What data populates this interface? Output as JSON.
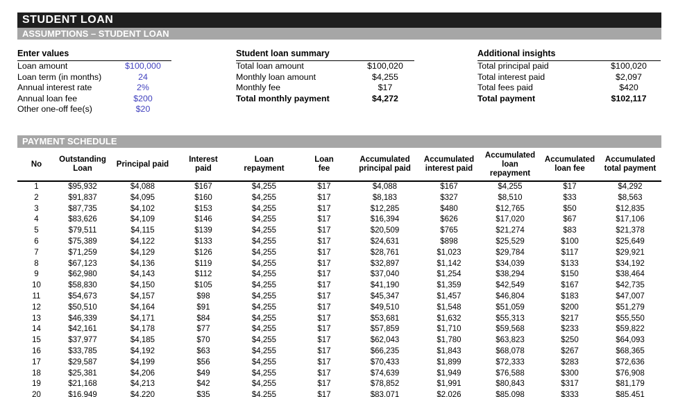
{
  "header": {
    "title": "STUDENT LOAN",
    "subtitle": "ASSUMPTIONS – STUDENT LOAN"
  },
  "sections": {
    "enter_values": {
      "title": "Enter values",
      "rows": [
        {
          "label": "Loan amount",
          "value": "$100,000"
        },
        {
          "label": "Loan term (in months)",
          "value": "24"
        },
        {
          "label": "Annual interest rate",
          "value": "2%"
        },
        {
          "label": "Annual loan fee",
          "value": "$200"
        },
        {
          "label": "Other one-off fee(s)",
          "value": "$20"
        }
      ]
    },
    "summary": {
      "title": "Student loan summary",
      "rows": [
        {
          "label": "Total loan amount",
          "value": "$100,020"
        },
        {
          "label": "Monthly loan amount",
          "value": "$4,255"
        },
        {
          "label": "Monthly fee",
          "value": "$17"
        },
        {
          "label": "Total monthly payment",
          "value": "$4,272",
          "bold": true
        }
      ]
    },
    "insights": {
      "title": "Additional insights",
      "rows": [
        {
          "label": "Total principal paid",
          "value": "$100,020"
        },
        {
          "label": "Total interest paid",
          "value": "$2,097"
        },
        {
          "label": "Total fees paid",
          "value": "$420"
        },
        {
          "label": "Total payment",
          "value": "$102,117",
          "bold": true
        }
      ]
    }
  },
  "schedule": {
    "title": "PAYMENT SCHEDULE",
    "columns": [
      "No",
      "Outstanding\nLoan",
      "Principal paid",
      "Interest\npaid",
      "Loan\nrepayment",
      "Loan\nfee",
      "Accumulated\nprincipal paid",
      "Accumulated\ninterest paid",
      "Accumulated\nloan\nrepayment",
      "Accumulated\nloan fee",
      "Accumulated\ntotal payment"
    ],
    "rows": [
      [
        "1",
        "$95,932",
        "$4,088",
        "$167",
        "$4,255",
        "$17",
        "$4,088",
        "$167",
        "$4,255",
        "$17",
        "$4,292"
      ],
      [
        "2",
        "$91,837",
        "$4,095",
        "$160",
        "$4,255",
        "$17",
        "$8,183",
        "$327",
        "$8,510",
        "$33",
        "$8,563"
      ],
      [
        "3",
        "$87,735",
        "$4,102",
        "$153",
        "$4,255",
        "$17",
        "$12,285",
        "$480",
        "$12,765",
        "$50",
        "$12,835"
      ],
      [
        "4",
        "$83,626",
        "$4,109",
        "$146",
        "$4,255",
        "$17",
        "$16,394",
        "$626",
        "$17,020",
        "$67",
        "$17,106"
      ],
      [
        "5",
        "$79,511",
        "$4,115",
        "$139",
        "$4,255",
        "$17",
        "$20,509",
        "$765",
        "$21,274",
        "$83",
        "$21,378"
      ],
      [
        "6",
        "$75,389",
        "$4,122",
        "$133",
        "$4,255",
        "$17",
        "$24,631",
        "$898",
        "$25,529",
        "$100",
        "$25,649"
      ],
      [
        "7",
        "$71,259",
        "$4,129",
        "$126",
        "$4,255",
        "$17",
        "$28,761",
        "$1,023",
        "$29,784",
        "$117",
        "$29,921"
      ],
      [
        "8",
        "$67,123",
        "$4,136",
        "$119",
        "$4,255",
        "$17",
        "$32,897",
        "$1,142",
        "$34,039",
        "$133",
        "$34,192"
      ],
      [
        "9",
        "$62,980",
        "$4,143",
        "$112",
        "$4,255",
        "$17",
        "$37,040",
        "$1,254",
        "$38,294",
        "$150",
        "$38,464"
      ],
      [
        "10",
        "$58,830",
        "$4,150",
        "$105",
        "$4,255",
        "$17",
        "$41,190",
        "$1,359",
        "$42,549",
        "$167",
        "$42,735"
      ],
      [
        "11",
        "$54,673",
        "$4,157",
        "$98",
        "$4,255",
        "$17",
        "$45,347",
        "$1,457",
        "$46,804",
        "$183",
        "$47,007"
      ],
      [
        "12",
        "$50,510",
        "$4,164",
        "$91",
        "$4,255",
        "$17",
        "$49,510",
        "$1,548",
        "$51,059",
        "$200",
        "$51,279"
      ],
      [
        "13",
        "$46,339",
        "$4,171",
        "$84",
        "$4,255",
        "$17",
        "$53,681",
        "$1,632",
        "$55,313",
        "$217",
        "$55,550"
      ],
      [
        "14",
        "$42,161",
        "$4,178",
        "$77",
        "$4,255",
        "$17",
        "$57,859",
        "$1,710",
        "$59,568",
        "$233",
        "$59,822"
      ],
      [
        "15",
        "$37,977",
        "$4,185",
        "$70",
        "$4,255",
        "$17",
        "$62,043",
        "$1,780",
        "$63,823",
        "$250",
        "$64,093"
      ],
      [
        "16",
        "$33,785",
        "$4,192",
        "$63",
        "$4,255",
        "$17",
        "$66,235",
        "$1,843",
        "$68,078",
        "$267",
        "$68,365"
      ],
      [
        "17",
        "$29,587",
        "$4,199",
        "$56",
        "$4,255",
        "$17",
        "$70,433",
        "$1,899",
        "$72,333",
        "$283",
        "$72,636"
      ],
      [
        "18",
        "$25,381",
        "$4,206",
        "$49",
        "$4,255",
        "$17",
        "$74,639",
        "$1,949",
        "$76,588",
        "$300",
        "$76,908"
      ],
      [
        "19",
        "$21,168",
        "$4,213",
        "$42",
        "$4,255",
        "$17",
        "$78,852",
        "$1,991",
        "$80,843",
        "$317",
        "$81,179"
      ],
      [
        "20",
        "$16,949",
        "$4,220",
        "$35",
        "$4,255",
        "$17",
        "$83,071",
        "$2,026",
        "$85,098",
        "$333",
        "$85,451"
      ]
    ]
  },
  "colors": {
    "input_value_blue": "#4141be",
    "bar_dark": "#1f1f1f",
    "bar_gray": "#a6a6a6"
  }
}
